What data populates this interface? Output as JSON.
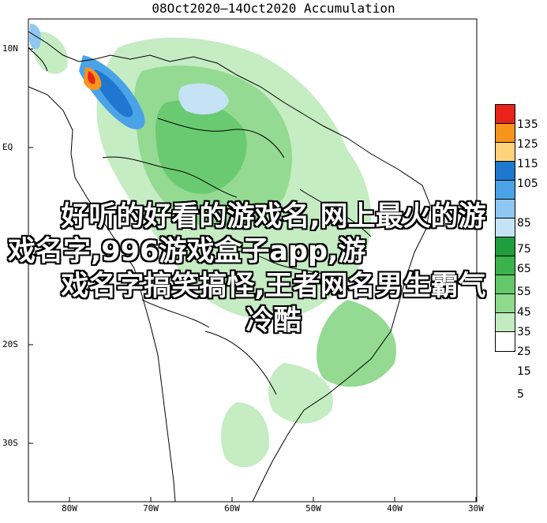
{
  "map": {
    "title": "08Oct2020—14Oct2020 Accumulation",
    "lat_labels": [
      "10N",
      "EQ",
      "20S",
      "30S"
    ],
    "lon_labels": [
      "80W",
      "70W",
      "60W",
      "50W",
      "40W",
      "30W"
    ]
  },
  "legend": {
    "values": [
      "135",
      "125",
      "115",
      "105",
      "85",
      "75",
      "65",
      "55",
      "45",
      "35",
      "25",
      "15",
      "5"
    ],
    "colors": [
      "#e8231a",
      "#f7941d",
      "#fdd27a",
      "#1f77d0",
      "#4aa3e6",
      "#8ec8f0",
      "#c5e3f5",
      "#1f9e3d",
      "#3bb24c",
      "#63c86a",
      "#8fd98d",
      "#c2ecbf",
      "#ffffff"
    ]
  },
  "overlay": {
    "line1": "好听的好看的游戏名,网上最火的游",
    "line2": "戏名字,996游戏盒子app,游",
    "line3": "戏名字搞笑搞怪,王者网名男生霸气",
    "line4": "冷酷"
  }
}
